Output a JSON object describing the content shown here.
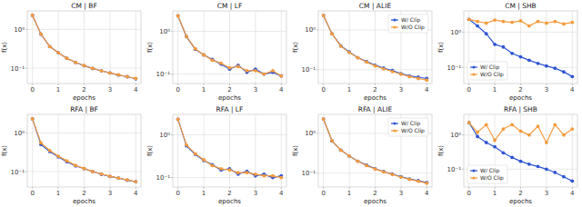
{
  "chart_data": [
    {
      "type": "line",
      "title": "CM | BF",
      "x_label": "epochs",
      "y_label": "f(x)",
      "log": "y",
      "grid": true,
      "x": [
        0,
        0.33,
        0.67,
        1,
        1.33,
        1.67,
        2,
        2.33,
        2.67,
        3,
        3.33,
        3.67,
        4
      ],
      "xlim": [
        -0.2,
        4.2
      ],
      "xticks": [
        0,
        1,
        2,
        3,
        4
      ],
      "ylim": [
        0.04,
        3
      ],
      "yticks": [
        {
          "value": 1,
          "label": "10⁰"
        },
        {
          "value": 0.1,
          "label": "10⁻¹"
        }
      ],
      "series": [
        {
          "name": "W/ Clip",
          "color": "#2f55d4",
          "marker": "circle",
          "values": [
            2.3,
            0.75,
            0.36,
            0.25,
            0.18,
            0.14,
            0.115,
            0.098,
            0.085,
            0.075,
            0.066,
            0.06,
            0.053
          ]
        },
        {
          "name": "W/O Clip",
          "color": "#f39a3c",
          "marker": "circle",
          "values": [
            2.3,
            0.76,
            0.36,
            0.25,
            0.18,
            0.14,
            0.116,
            0.098,
            0.085,
            0.075,
            0.067,
            0.06,
            0.054
          ]
        }
      ]
    },
    {
      "type": "line",
      "title": "CM | LF",
      "x_label": "epochs",
      "y_label": "f(x)",
      "log": "y",
      "grid": true,
      "x": [
        0,
        0.33,
        0.67,
        1,
        1.33,
        1.67,
        2,
        2.33,
        2.67,
        3,
        3.33,
        3.67,
        4
      ],
      "xlim": [
        -0.2,
        4.2
      ],
      "xticks": [
        0,
        1,
        2,
        3,
        4
      ],
      "ylim": [
        0.06,
        3
      ],
      "yticks": [
        {
          "value": 1,
          "label": "10⁰"
        },
        {
          "value": 0.1,
          "label": "10⁻¹"
        }
      ],
      "series": [
        {
          "name": "W/ Clip",
          "color": "#2f55d4",
          "marker": "circle",
          "values": [
            2.3,
            0.75,
            0.38,
            0.28,
            0.22,
            0.17,
            0.13,
            0.16,
            0.11,
            0.13,
            0.1,
            0.11,
            0.09
          ]
        },
        {
          "name": "W/O Clip",
          "color": "#f39a3c",
          "marker": "circle",
          "values": [
            2.3,
            0.76,
            0.39,
            0.28,
            0.21,
            0.18,
            0.14,
            0.15,
            0.12,
            0.12,
            0.1,
            0.12,
            0.09
          ]
        }
      ]
    },
    {
      "type": "line",
      "title": "CM | ALIE",
      "x_label": "epochs",
      "y_label": "f(x)",
      "log": "y",
      "grid": true,
      "legend": "upper right",
      "x": [
        0,
        0.33,
        0.67,
        1,
        1.33,
        1.67,
        2,
        2.33,
        2.67,
        3,
        3.33,
        3.67,
        4
      ],
      "xlim": [
        -0.2,
        4.2
      ],
      "xticks": [
        0,
        1,
        2,
        3,
        4
      ],
      "ylim": [
        0.045,
        3
      ],
      "yticks": [
        {
          "value": 1,
          "label": "10⁰"
        },
        {
          "value": 0.1,
          "label": "10⁻¹"
        }
      ],
      "series": [
        {
          "name": "W/ Clip",
          "color": "#2f55d4",
          "marker": "circle",
          "values": [
            2.3,
            0.8,
            0.4,
            0.28,
            0.2,
            0.16,
            0.13,
            0.11,
            0.095,
            0.08,
            0.07,
            0.065,
            0.06
          ]
        },
        {
          "name": "W/O Clip",
          "color": "#f39a3c",
          "marker": "circle",
          "values": [
            2.3,
            0.8,
            0.39,
            0.27,
            0.2,
            0.155,
            0.125,
            0.105,
            0.09,
            0.077,
            0.067,
            0.06,
            0.055
          ]
        }
      ]
    },
    {
      "type": "line",
      "title": "CM | SHB",
      "x_label": "epochs",
      "y_label": "f(x)",
      "log": "y",
      "grid": true,
      "legend": "lower left",
      "x": [
        0,
        0.33,
        0.67,
        1,
        1.33,
        1.67,
        2,
        2.33,
        2.67,
        3,
        3.33,
        3.67,
        4
      ],
      "xlim": [
        -0.2,
        4.2
      ],
      "xticks": [
        0,
        1,
        2,
        3,
        4
      ],
      "ylim": [
        0.035,
        4
      ],
      "yticks": [
        {
          "value": 1,
          "label": "10⁰"
        },
        {
          "value": 0.1,
          "label": "10⁻¹"
        }
      ],
      "series": [
        {
          "name": "W/ Clip",
          "color": "#2f55d4",
          "marker": "circle",
          "values": [
            2.3,
            1.5,
            0.9,
            0.45,
            0.38,
            0.25,
            0.2,
            0.16,
            0.13,
            0.11,
            0.095,
            0.075,
            0.055
          ]
        },
        {
          "name": "W/O Clip",
          "color": "#f39a3c",
          "marker": "circle",
          "values": [
            2.3,
            2.0,
            1.8,
            2.2,
            2.0,
            1.9,
            2.1,
            1.5,
            2.0,
            1.8,
            2.0,
            1.7,
            1.9
          ]
        }
      ]
    },
    {
      "type": "line",
      "title": "RFA | BF",
      "x_label": "epochs",
      "y_label": "f(x)",
      "log": "y",
      "grid": true,
      "x": [
        0,
        0.33,
        0.67,
        1,
        1.33,
        1.67,
        2,
        2.33,
        2.67,
        3,
        3.33,
        3.67,
        4
      ],
      "xlim": [
        -0.2,
        4.2
      ],
      "xticks": [
        0,
        1,
        2,
        3,
        4
      ],
      "ylim": [
        0.04,
        3
      ],
      "yticks": [
        {
          "value": 1,
          "label": "10⁰"
        },
        {
          "value": 0.1,
          "label": "10⁻¹"
        }
      ],
      "series": [
        {
          "name": "W/ Clip",
          "color": "#2f55d4",
          "marker": "circle",
          "values": [
            2.3,
            0.5,
            0.33,
            0.24,
            0.18,
            0.14,
            0.12,
            0.1,
            0.085,
            0.075,
            0.068,
            0.06,
            0.055
          ]
        },
        {
          "name": "W/O Clip",
          "color": "#f39a3c",
          "marker": "circle",
          "values": [
            2.3,
            0.55,
            0.35,
            0.25,
            0.19,
            0.145,
            0.12,
            0.1,
            0.087,
            0.076,
            0.068,
            0.061,
            0.055
          ]
        }
      ]
    },
    {
      "type": "line",
      "title": "RFA | LF",
      "x_label": "epochs",
      "y_label": "f(x)",
      "log": "y",
      "grid": true,
      "x": [
        0,
        0.33,
        0.67,
        1,
        1.33,
        1.67,
        2,
        2.33,
        2.67,
        3,
        3.33,
        3.67,
        4
      ],
      "xlim": [
        -0.2,
        4.2
      ],
      "xticks": [
        0,
        1,
        2,
        3,
        4
      ],
      "ylim": [
        0.06,
        3
      ],
      "yticks": [
        {
          "value": 1,
          "label": "10⁰"
        },
        {
          "value": 0.1,
          "label": "10⁻¹"
        }
      ],
      "series": [
        {
          "name": "W/ Clip",
          "color": "#2f55d4",
          "marker": "circle",
          "values": [
            2.3,
            0.55,
            0.35,
            0.25,
            0.2,
            0.15,
            0.16,
            0.12,
            0.14,
            0.11,
            0.12,
            0.1,
            0.11
          ]
        },
        {
          "name": "W/O Clip",
          "color": "#f39a3c",
          "marker": "circle",
          "values": [
            2.3,
            0.58,
            0.36,
            0.26,
            0.19,
            0.16,
            0.15,
            0.13,
            0.13,
            0.12,
            0.11,
            0.11,
            0.1
          ]
        }
      ]
    },
    {
      "type": "line",
      "title": "RFA | ALIE",
      "x_label": "epochs",
      "y_label": "f(x)",
      "log": "y",
      "grid": true,
      "legend": "upper right",
      "x": [
        0,
        0.33,
        0.67,
        1,
        1.33,
        1.67,
        2,
        2.33,
        2.67,
        3,
        3.33,
        3.67,
        4
      ],
      "xlim": [
        -0.2,
        4.2
      ],
      "xticks": [
        0,
        1,
        2,
        3,
        4
      ],
      "ylim": [
        0.045,
        3
      ],
      "yticks": [
        {
          "value": 1,
          "label": "10⁰"
        },
        {
          "value": 0.1,
          "label": "10⁻¹"
        }
      ],
      "series": [
        {
          "name": "W/ Clip",
          "color": "#2f55d4",
          "marker": "circle",
          "values": [
            2.3,
            0.65,
            0.38,
            0.27,
            0.2,
            0.16,
            0.13,
            0.11,
            0.095,
            0.082,
            0.072,
            0.065,
            0.058
          ]
        },
        {
          "name": "W/O Clip",
          "color": "#f39a3c",
          "marker": "circle",
          "values": [
            2.3,
            0.66,
            0.38,
            0.27,
            0.2,
            0.155,
            0.128,
            0.108,
            0.093,
            0.08,
            0.07,
            0.063,
            0.056
          ]
        }
      ]
    },
    {
      "type": "line",
      "title": "RFA | SHB",
      "x_label": "epochs",
      "y_label": "f(x)",
      "log": "y",
      "grid": true,
      "legend": "lower left",
      "x": [
        0,
        0.33,
        0.67,
        1,
        1.33,
        1.67,
        2,
        2.33,
        2.67,
        3,
        3.33,
        3.67,
        4
      ],
      "xlim": [
        -0.2,
        4.2
      ],
      "xticks": [
        0,
        1,
        2,
        3,
        4
      ],
      "ylim": [
        0.03,
        4
      ],
      "yticks": [
        {
          "value": 1,
          "label": "10⁰"
        },
        {
          "value": 0.1,
          "label": "10⁻¹"
        }
      ],
      "series": [
        {
          "name": "W/ Clip",
          "color": "#2f55d4",
          "marker": "circle",
          "values": [
            2.3,
            0.9,
            0.6,
            0.45,
            0.3,
            0.22,
            0.17,
            0.14,
            0.12,
            0.1,
            0.08,
            0.06,
            0.045
          ]
        },
        {
          "name": "W/O Clip",
          "color": "#f39a3c",
          "marker": "circle",
          "values": [
            2.3,
            1.2,
            2.0,
            0.7,
            1.5,
            2.0,
            1.3,
            1.0,
            1.8,
            0.6,
            2.0,
            1.0,
            1.5
          ]
        }
      ]
    }
  ]
}
